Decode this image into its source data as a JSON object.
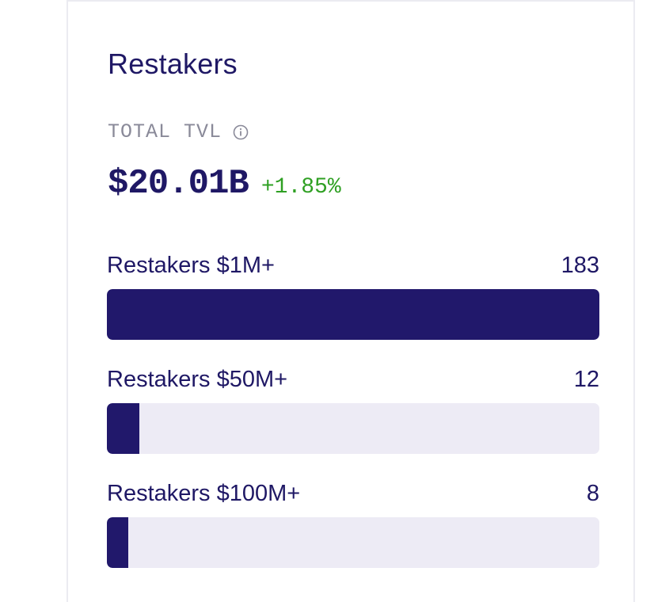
{
  "card": {
    "title": "Restakers",
    "tvl_label": "TOTAL TVL",
    "tvl_value": "$20.01B",
    "tvl_change": "+1.85%"
  },
  "bars": [
    {
      "label": "Restakers $1M+",
      "value": "183",
      "fill_fraction": 1.0
    },
    {
      "label": "Restakers $50M+",
      "value": "12",
      "fill_fraction": 0.066
    },
    {
      "label": "Restakers $100M+",
      "value": "8",
      "fill_fraction": 0.044
    }
  ],
  "colors": {
    "primary": "#1f1865",
    "bar_fill": "#21186b",
    "bar_track": "#edebf5",
    "positive": "#2fa023",
    "muted": "#8a8a99"
  },
  "icons": {
    "info": "info-circle-icon"
  }
}
